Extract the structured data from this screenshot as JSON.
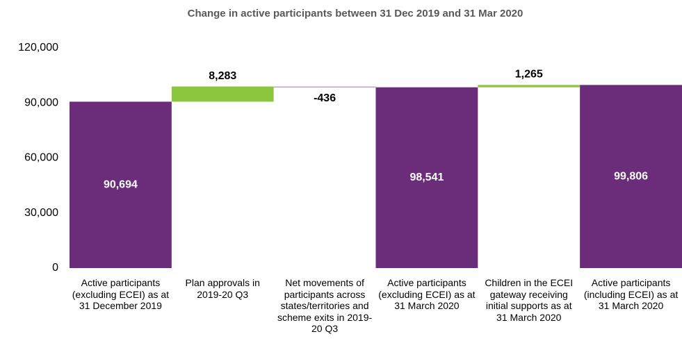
{
  "chart_data": {
    "type": "waterfall",
    "title": "Change in active participants between 31 Dec 2019 and 31 Mar 2020",
    "categories": [
      "Active participants (excluding ECEI) as at 31 December 2019",
      "Plan approvals in 2019-20 Q3",
      "Net movements of participants across states/territories and scheme exits in 2019-20 Q3",
      "Active participants (excluding ECEI) as at 31 March 2020",
      "Children in the ECEI gateway receiving initial supports as at 31 March 2020",
      "Active participants (including ECEI) as at 31 March 2020"
    ],
    "values": [
      90694,
      8283,
      -436,
      98541,
      1265,
      99806
    ],
    "value_labels": [
      "90,694",
      "8,283",
      "-436",
      "98,541",
      "1,265",
      "99,806"
    ],
    "bar_types": [
      "total",
      "increase",
      "decrease",
      "total",
      "increase",
      "total"
    ],
    "colors": {
      "total": "#6b2c7a",
      "increase": "#8cc63f",
      "decrease": "#b9a3d3"
    },
    "ylim": [
      0,
      120000
    ],
    "yticks": [
      0,
      {
        "value": 30000,
        "label": "30,000"
      },
      {
        "value": 60000,
        "label": "60,000"
      },
      {
        "value": 90000,
        "label": "90,000"
      },
      {
        "value": 120000,
        "label": "120,000"
      }
    ],
    "grid": false
  }
}
